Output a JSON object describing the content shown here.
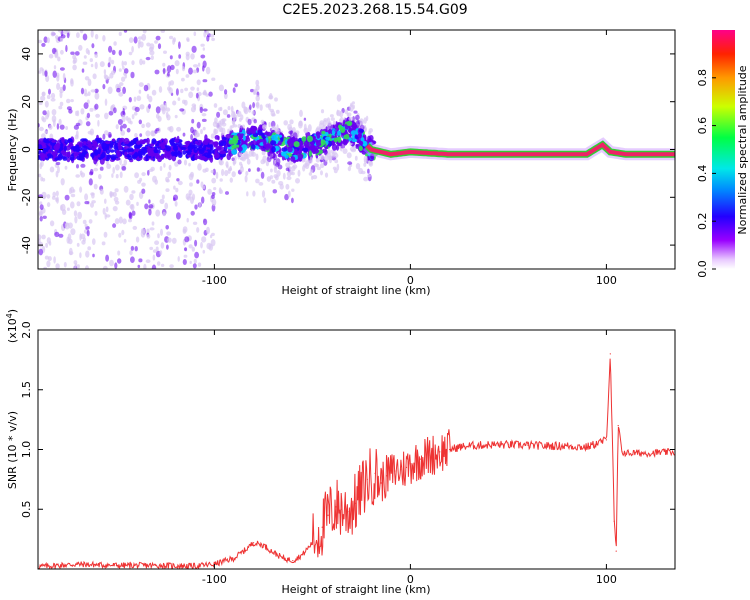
{
  "title": "C2E5.2023.268.15.54.G09",
  "colors": {
    "line": "#ee3333",
    "scatter_low": "#d9c7f2",
    "scatter_mid": "#6600ee",
    "core": "#ee2266",
    "core_halo": "#33cc33"
  },
  "chart_data": [
    {
      "type": "heatmap",
      "xlabel": "Height of straight line (km)",
      "ylabel": "Frequency (Hz)",
      "xlim": [
        -190,
        135
      ],
      "ylim": [
        -50,
        50
      ],
      "xticks": [
        -100,
        0,
        100
      ],
      "yticks": [
        -40,
        -20,
        0,
        20,
        40
      ],
      "colorbar": {
        "label": "Normalized spectral amplitude",
        "range": [
          0.0,
          1.0
        ],
        "ticks": [
          0.0,
          0.2,
          0.4,
          0.6,
          0.8
        ],
        "tick_labels": [
          "0.0",
          "0.2",
          "0.4",
          "0.6",
          "0.8"
        ]
      },
      "center_track": {
        "description_points_x": [
          -190,
          -150,
          -120,
          -100,
          -80,
          -60,
          -45,
          -30,
          -20,
          -10,
          0,
          20,
          50,
          90,
          98,
          102,
          110,
          135
        ],
        "frequency_hz": [
          0,
          0,
          0,
          0,
          5,
          0,
          3,
          8,
          0,
          -2,
          -1,
          -2,
          -2,
          -2,
          2,
          -1,
          -2,
          -2
        ],
        "amplitude": [
          0.2,
          0.25,
          0.2,
          0.3,
          0.45,
          0.4,
          0.5,
          0.55,
          0.8,
          0.95,
          0.95,
          1.0,
          1.0,
          1.0,
          0.7,
          1.0,
          1.0,
          1.0
        ]
      },
      "scatter_extent_hz": [
        {
          "x_range": [
            -190,
            -150
          ],
          "halfwidth": 50
        },
        {
          "x_range": [
            -150,
            -100
          ],
          "halfwidth": 50
        },
        {
          "x_range": [
            -100,
            -60
          ],
          "halfwidth": 20
        },
        {
          "x_range": [
            -60,
            -20
          ],
          "halfwidth": 14
        },
        {
          "x_range": [
            -20,
            135
          ],
          "halfwidth": 4
        }
      ]
    },
    {
      "type": "line",
      "xlabel": "Height of straight line (km)",
      "ylabel": "SNR (10 * v/v)",
      "scale_label": "(x10",
      "scale_exponent": "4",
      "scale_close": ")",
      "xlim": [
        -190,
        135
      ],
      "ylim": [
        0,
        20000
      ],
      "xticks": [
        -100,
        0,
        100
      ],
      "yticks": [
        5000,
        10000,
        15000,
        20000
      ],
      "ytick_labels": [
        "0.5",
        "1.0",
        "1.5",
        "2.0"
      ],
      "series": [
        {
          "name": "SNR",
          "x": [
            -190,
            -170,
            -150,
            -130,
            -110,
            -100,
            -90,
            -85,
            -80,
            -75,
            -70,
            -65,
            -60,
            -55,
            -50,
            -45,
            -42,
            -38,
            -35,
            -32,
            -28,
            -25,
            -22,
            -18,
            -15,
            -12,
            -8,
            -5,
            -2,
            0,
            5,
            10,
            15,
            20,
            25,
            30,
            40,
            50,
            60,
            70,
            80,
            90,
            95,
            100,
            102,
            104,
            105,
            106,
            108,
            110,
            120,
            135
          ],
          "y": [
            200,
            400,
            300,
            300,
            250,
            400,
            900,
            1500,
            2200,
            2000,
            1400,
            900,
            700,
            1200,
            2200,
            3500,
            4500,
            5200,
            5000,
            4800,
            5500,
            6500,
            7500,
            8000,
            7200,
            7800,
            8200,
            8300,
            8500,
            8800,
            9200,
            9500,
            9800,
            10000,
            10200,
            10300,
            10400,
            10400,
            10350,
            10300,
            10300,
            10200,
            10500,
            10800,
            18000,
            4000,
            1500,
            12000,
            9800,
            9700,
            9700,
            9800
          ]
        }
      ]
    }
  ]
}
